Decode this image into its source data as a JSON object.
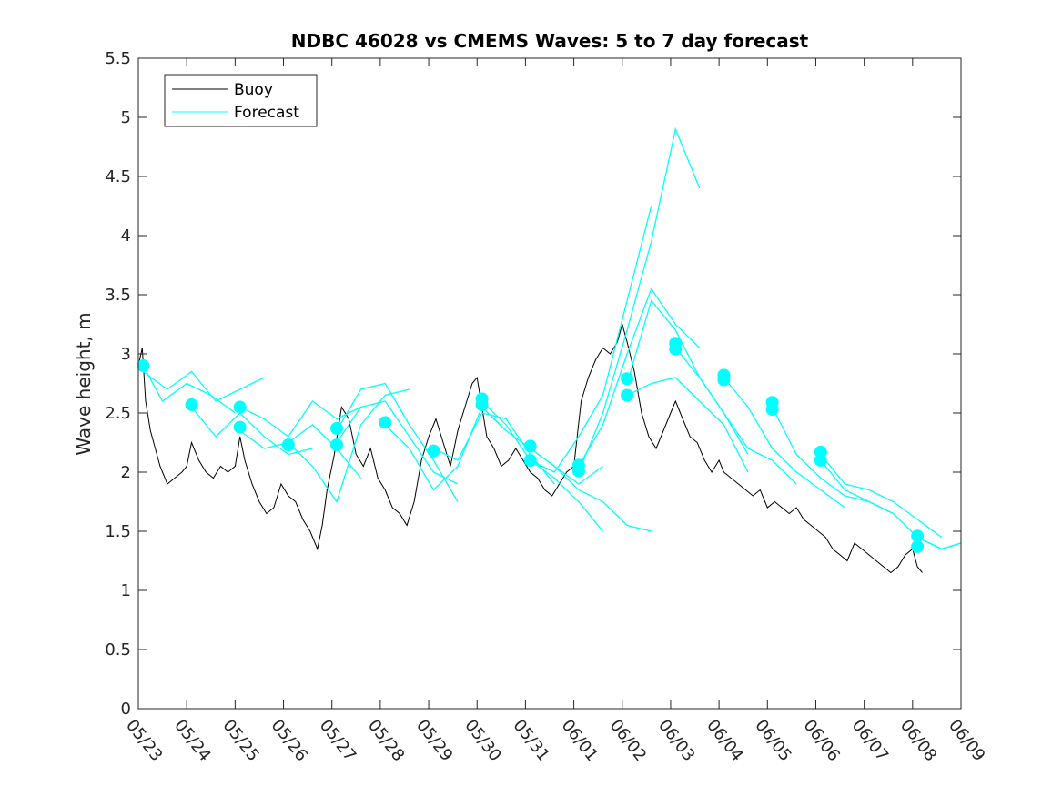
{
  "chart_data": {
    "type": "line",
    "title": "NDBC 46028 vs CMEMS Waves: 5 to 7 day forecast",
    "xlabel": "",
    "ylabel": "Wave height, m",
    "xlim": [
      0,
      17
    ],
    "ylim": [
      0,
      5.5
    ],
    "x_ticks": [
      "05/23",
      "05/24",
      "05/25",
      "05/26",
      "05/27",
      "05/28",
      "05/29",
      "05/30",
      "05/31",
      "06/01",
      "06/02",
      "06/03",
      "06/04",
      "06/05",
      "06/06",
      "06/07",
      "06/08",
      "06/09"
    ],
    "y_ticks": [
      "0",
      "0.5",
      "1",
      "1.5",
      "2",
      "2.5",
      "3",
      "3.5",
      "4",
      "4.5",
      "5",
      "5.5"
    ],
    "grid": false,
    "legend_position": "top-left",
    "colors": {
      "buoy": "#000000",
      "forecast": "#00ffff"
    },
    "series": [
      {
        "name": "Buoy",
        "x": [
          0.0,
          0.08,
          0.15,
          0.25,
          0.35,
          0.45,
          0.6,
          0.75,
          0.9,
          1.0,
          1.1,
          1.25,
          1.4,
          1.55,
          1.7,
          1.85,
          2.0,
          2.1,
          2.2,
          2.35,
          2.5,
          2.65,
          2.8,
          2.95,
          3.1,
          3.25,
          3.4,
          3.55,
          3.7,
          3.8,
          3.9,
          4.05,
          4.2,
          4.35,
          4.5,
          4.65,
          4.8,
          4.95,
          5.1,
          5.25,
          5.4,
          5.55,
          5.7,
          5.85,
          6.0,
          6.15,
          6.3,
          6.45,
          6.6,
          6.75,
          6.9,
          7.0,
          7.1,
          7.2,
          7.35,
          7.5,
          7.65,
          7.8,
          7.95,
          8.1,
          8.25,
          8.4,
          8.55,
          8.7,
          8.85,
          9.0,
          9.15,
          9.3,
          9.45,
          9.6,
          9.75,
          9.9,
          10.0,
          10.1,
          10.25,
          10.4,
          10.55,
          10.7,
          10.85,
          11.0,
          11.1,
          11.25,
          11.4,
          11.55,
          11.7,
          11.85,
          12.0,
          12.1,
          12.25,
          12.4,
          12.55,
          12.7,
          12.85,
          13.0,
          13.15,
          13.3,
          13.45,
          13.6,
          13.75,
          13.9,
          14.05,
          14.2,
          14.35,
          14.5,
          14.65,
          14.8,
          14.95,
          15.1,
          15.25,
          15.4,
          15.55,
          15.7,
          15.85,
          16.0,
          16.1,
          16.2
        ],
        "y": [
          2.9,
          3.05,
          2.6,
          2.35,
          2.2,
          2.05,
          1.9,
          1.95,
          2.0,
          2.05,
          2.25,
          2.1,
          2.0,
          1.95,
          2.05,
          2.0,
          2.05,
          2.3,
          2.1,
          1.9,
          1.75,
          1.65,
          1.7,
          1.9,
          1.8,
          1.75,
          1.6,
          1.5,
          1.35,
          1.55,
          1.85,
          2.15,
          2.55,
          2.45,
          2.15,
          2.05,
          2.2,
          1.95,
          1.85,
          1.7,
          1.65,
          1.55,
          1.75,
          2.1,
          2.3,
          2.45,
          2.25,
          2.05,
          2.35,
          2.55,
          2.75,
          2.8,
          2.55,
          2.3,
          2.2,
          2.05,
          2.1,
          2.2,
          2.1,
          2.0,
          1.95,
          1.85,
          1.8,
          1.9,
          2.0,
          2.05,
          2.6,
          2.8,
          2.95,
          3.05,
          3.0,
          3.1,
          3.25,
          3.1,
          2.85,
          2.5,
          2.3,
          2.2,
          2.35,
          2.5,
          2.6,
          2.45,
          2.3,
          2.25,
          2.1,
          2.0,
          2.1,
          2.0,
          1.95,
          1.9,
          1.85,
          1.8,
          1.85,
          1.7,
          1.75,
          1.7,
          1.65,
          1.7,
          1.6,
          1.55,
          1.5,
          1.45,
          1.35,
          1.3,
          1.25,
          1.4,
          1.35,
          1.3,
          1.25,
          1.2,
          1.15,
          1.2,
          1.3,
          1.35,
          1.2,
          1.15
        ]
      },
      {
        "name": "Forecast",
        "segments": [
          {
            "x": [
              0.1,
              0.5,
              1.0,
              1.5,
              2.0
            ],
            "y": [
              2.9,
              2.6,
              2.75,
              2.65,
              2.5
            ]
          },
          {
            "x": [
              0.1,
              0.6,
              1.1,
              1.6,
              2.1,
              2.6
            ],
            "y": [
              2.85,
              2.7,
              2.85,
              2.6,
              2.7,
              2.8
            ]
          },
          {
            "x": [
              1.1,
              1.6,
              2.1,
              2.6,
              3.1,
              3.6
            ],
            "y": [
              2.55,
              2.3,
              2.5,
              2.3,
              2.15,
              2.2
            ]
          },
          {
            "x": [
              2.1,
              2.6,
              3.1,
              3.6,
              4.1,
              4.6
            ],
            "y": [
              2.55,
              2.45,
              2.3,
              2.6,
              2.45,
              2.55
            ]
          },
          {
            "x": [
              2.1,
              2.6,
              3.1,
              3.6,
              4.1,
              4.6
            ],
            "y": [
              2.35,
              2.2,
              2.25,
              2.4,
              2.2,
              1.95
            ]
          },
          {
            "x": [
              3.1,
              3.6,
              4.1,
              4.6,
              5.1,
              5.6
            ],
            "y": [
              2.25,
              2.05,
              1.75,
              2.4,
              2.65,
              2.7
            ]
          },
          {
            "x": [
              4.1,
              4.6,
              5.1,
              5.6,
              6.1,
              6.6
            ],
            "y": [
              2.35,
              2.7,
              2.75,
              2.4,
              2.1,
              1.75
            ]
          },
          {
            "x": [
              4.1,
              4.6,
              5.1,
              5.6,
              6.1,
              6.6
            ],
            "y": [
              2.25,
              2.55,
              2.6,
              2.3,
              2.0,
              1.9
            ]
          },
          {
            "x": [
              5.1,
              5.6,
              6.1,
              6.6,
              7.1,
              7.6
            ],
            "y": [
              2.4,
              2.2,
              1.85,
              2.05,
              2.55,
              2.35
            ]
          },
          {
            "x": [
              6.1,
              6.6,
              7.1,
              7.6,
              8.1,
              8.6
            ],
            "y": [
              2.2,
              2.1,
              2.5,
              2.45,
              2.15,
              1.9
            ]
          },
          {
            "x": [
              7.1,
              7.6,
              8.1,
              8.6,
              9.1,
              9.6
            ],
            "y": [
              2.6,
              2.4,
              2.1,
              1.95,
              1.75,
              1.5
            ]
          },
          {
            "x": [
              7.1,
              7.6,
              8.1,
              8.6,
              9.1,
              9.6
            ],
            "y": [
              2.55,
              2.35,
              2.2,
              2.05,
              1.9,
              2.05
            ]
          },
          {
            "x": [
              8.1,
              8.6,
              9.1,
              9.6,
              10.1,
              10.6
            ],
            "y": [
              2.1,
              2.0,
              2.3,
              2.65,
              3.45,
              4.25
            ]
          },
          {
            "x": [
              8.1,
              8.6,
              9.1,
              9.6,
              10.1,
              10.6
            ],
            "y": [
              2.2,
              2.05,
              1.85,
              1.75,
              1.55,
              1.5
            ]
          },
          {
            "x": [
              9.1,
              9.6,
              10.1,
              10.6,
              11.1,
              11.6
            ],
            "y": [
              2.0,
              2.5,
              3.2,
              3.95,
              4.9,
              4.4
            ]
          },
          {
            "x": [
              9.1,
              9.6,
              10.1,
              10.6,
              11.1,
              11.6
            ],
            "y": [
              2.05,
              2.4,
              3.0,
              3.55,
              3.25,
              3.05
            ]
          },
          {
            "x": [
              10.1,
              10.6,
              11.1,
              11.6,
              12.1,
              12.6
            ],
            "y": [
              2.65,
              2.75,
              2.8,
              2.6,
              2.4,
              2.0
            ]
          },
          {
            "x": [
              10.1,
              10.6,
              11.1,
              11.6,
              12.1,
              12.6
            ],
            "y": [
              2.75,
              3.45,
              3.2,
              2.8,
              2.5,
              2.15
            ]
          },
          {
            "x": [
              11.1,
              11.6,
              12.1,
              12.6,
              13.1,
              13.6
            ],
            "y": [
              3.05,
              2.8,
              2.5,
              2.2,
              2.1,
              1.9
            ]
          },
          {
            "x": [
              12.1,
              12.6,
              13.1,
              13.6,
              14.1,
              14.6
            ],
            "y": [
              2.8,
              2.55,
              2.2,
              2.0,
              1.85,
              1.7
            ]
          },
          {
            "x": [
              13.1,
              13.6,
              14.1,
              14.6,
              15.1,
              15.6
            ],
            "y": [
              2.55,
              2.15,
              1.95,
              1.8,
              1.75,
              1.65
            ]
          },
          {
            "x": [
              14.1,
              14.6,
              15.1,
              15.6,
              16.1,
              16.6
            ],
            "y": [
              2.15,
              1.9,
              1.85,
              1.75,
              1.6,
              1.45
            ]
          },
          {
            "x": [
              14.1,
              14.6,
              15.1,
              15.6,
              16.1,
              16.6,
              17.0
            ],
            "y": [
              2.1,
              1.85,
              1.75,
              1.65,
              1.45,
              1.35,
              1.4
            ]
          },
          {
            "x": [
              16.1,
              16.6,
              17.0
            ],
            "y": [
              1.45,
              1.35,
              1.4
            ]
          }
        ],
        "markers": [
          [
            0.1,
            2.9
          ],
          [
            1.1,
            2.57
          ],
          [
            2.1,
            2.55
          ],
          [
            2.1,
            2.38
          ],
          [
            3.1,
            2.23
          ],
          [
            4.1,
            2.37
          ],
          [
            4.1,
            2.23
          ],
          [
            5.1,
            2.42
          ],
          [
            6.1,
            2.18
          ],
          [
            7.1,
            2.62
          ],
          [
            7.1,
            2.57
          ],
          [
            8.1,
            2.22
          ],
          [
            8.1,
            2.1
          ],
          [
            9.1,
            2.06
          ],
          [
            9.1,
            2.01
          ],
          [
            10.1,
            2.79
          ],
          [
            10.1,
            2.65
          ],
          [
            11.1,
            3.09
          ],
          [
            11.1,
            3.04
          ],
          [
            12.1,
            2.82
          ],
          [
            12.1,
            2.78
          ],
          [
            13.1,
            2.59
          ],
          [
            13.1,
            2.53
          ],
          [
            14.1,
            2.17
          ],
          [
            14.1,
            2.1
          ],
          [
            16.1,
            1.46
          ],
          [
            16.1,
            1.37
          ]
        ]
      }
    ]
  },
  "legend": {
    "items": [
      {
        "label": "Buoy",
        "color": "#000000"
      },
      {
        "label": "Forecast",
        "color": "#00ffff"
      }
    ]
  }
}
